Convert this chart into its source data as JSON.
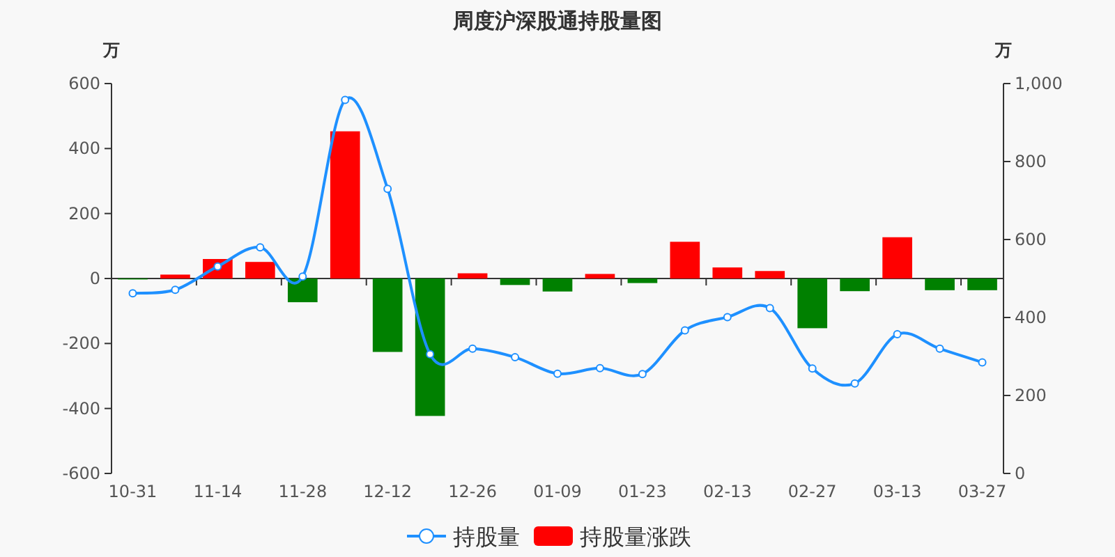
{
  "chart_data": {
    "type": "bar",
    "title": "周度沪深股通持股量图",
    "ylabel": "万",
    "y2label": "万",
    "categories": [
      "10-31",
      null,
      "11-14",
      null,
      "11-28",
      null,
      "12-12",
      null,
      "12-26",
      null,
      "01-09",
      null,
      "01-23",
      null,
      "02-13",
      null,
      "02-27",
      null,
      "03-13",
      null,
      "03-27"
    ],
    "series": [
      {
        "name": "持股量",
        "type": "line",
        "axis": "y2",
        "color": "#1e90ff",
        "marker": "circle",
        "values": [
          462,
          471,
          531,
          580,
          505,
          958,
          730,
          306,
          320,
          298,
          256,
          270,
          255,
          367,
          401,
          424,
          269,
          231,
          357,
          320,
          285
        ]
      },
      {
        "name": "持股量涨跌",
        "color": "#ff0000",
        "colors": [
          "#008000",
          "#ff0000",
          "#ff0000",
          "#ff0000",
          "#008000",
          "#ff0000",
          "#008000",
          "#008000",
          "#ff0000",
          "#008000",
          "#008000",
          "#ff0000",
          "#008000",
          "#ff0000",
          "#ff0000",
          "#ff0000",
          "#008000",
          "#008000",
          "#ff0000",
          "#008000",
          "#008000"
        ],
        "values": [
          -3,
          12,
          60,
          51,
          -73,
          453,
          -226,
          -423,
          16,
          -20,
          -40,
          14,
          -14,
          113,
          34,
          23,
          -153,
          -39,
          127,
          -36,
          -36
        ]
      }
    ],
    "ylim": [
      -600,
      600
    ],
    "yticks": [
      -600,
      -400,
      -200,
      0,
      200,
      400,
      600
    ],
    "y2lim": [
      0,
      1000
    ],
    "y2ticks": [
      0,
      200,
      400,
      600,
      800,
      {
        "value": 1000,
        "label": "1,000"
      }
    ],
    "legend": "bottom"
  }
}
